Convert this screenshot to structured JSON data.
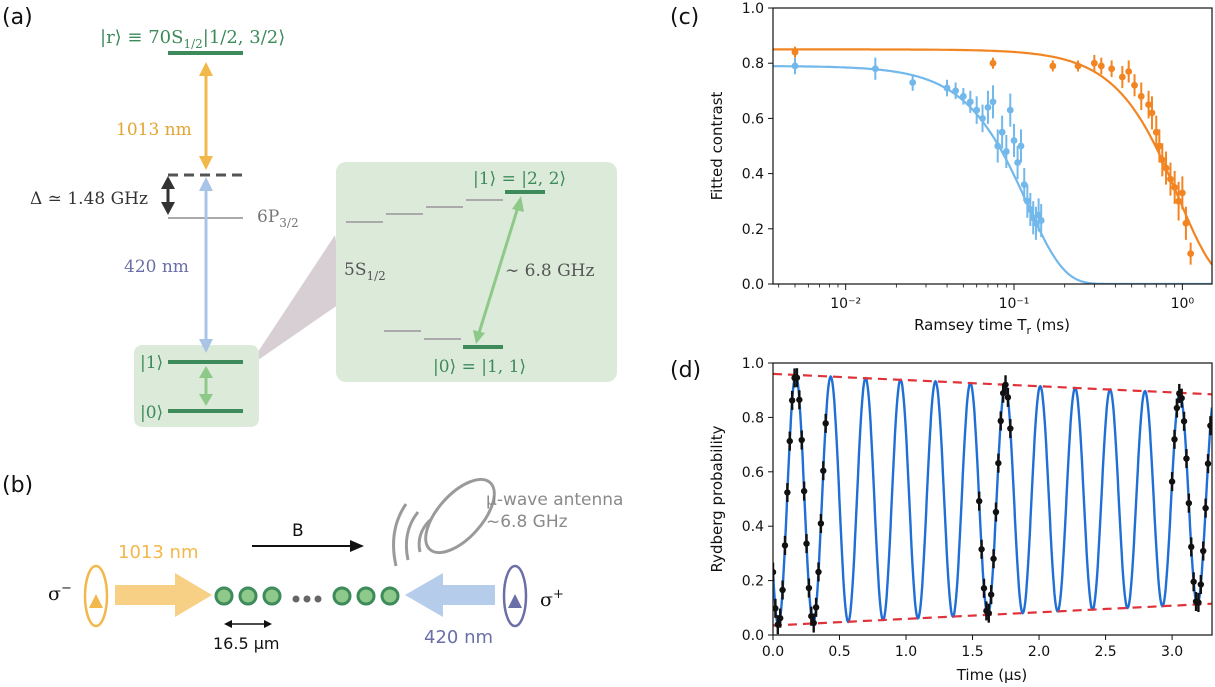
{
  "panel_labels": {
    "a": "(a)",
    "b": "(b)",
    "c": "(c)",
    "d": "(d)"
  },
  "colors": {
    "green": "#3d8a5a",
    "green_box": "#dcebd9",
    "yellow": "#f2b84b",
    "blue_light": "#a9c4e6",
    "purple": "#6b6fa8",
    "gray": "#8a8a8a",
    "orange": "#f28522",
    "sky": "#72b8ea",
    "fit_blue": "#1f6fd6",
    "red": "#e0323a"
  },
  "panel_a": {
    "rydberg_label_prefix": "|r⟩ ≡ 70S",
    "rydberg_label_sub": "1/2",
    "rydberg_label_suffix": "|1/2, 3/2⟩",
    "label_1013": "1013 nm",
    "label_420": "420 nm",
    "detuning_prefix": "Δ ≃ ",
    "detuning_value": "1.48 GHz",
    "p_state": "6P",
    "p_state_sub": "3/2",
    "s_state": "5S",
    "s_state_sub": "1/2",
    "ket1": "|1⟩",
    "ket0": "|0⟩",
    "ket1_full": "|1⟩ = |2, 2⟩",
    "ket0_full": "|0⟩ = |1, 1⟩",
    "hyperfine": "∼ 6.8 GHz"
  },
  "panel_b": {
    "field_label": "B",
    "antenna_line1": "μ-wave antenna",
    "antenna_line2": "~6.8 GHz",
    "label_1013": "1013 nm",
    "label_420": "420 nm",
    "spacing": "16.5 μm",
    "sigma_minus": "σ",
    "sigma_minus_sup": "−",
    "sigma_plus": "σ",
    "sigma_plus_sup": "+"
  },
  "chart_data": [
    {
      "id": "c",
      "type": "scatter",
      "title": "",
      "xlabel_main": "Ramsey time T",
      "xlabel_sub": "r",
      "xlabel_unit": " (ms)",
      "ylabel": "Fitted contrast",
      "xscale": "log",
      "xlim": [
        0.0037,
        1.5
      ],
      "ylim": [
        0,
        1
      ],
      "yticks": [
        0.0,
        0.2,
        0.4,
        0.6,
        0.8,
        1.0
      ],
      "ytick_labels": [
        "0.0",
        "0.2",
        "0.4",
        "0.6",
        "0.8",
        "1.0"
      ],
      "xticks": [
        0.01,
        0.1,
        1
      ],
      "xtick_labels": [
        "10⁻²",
        "10⁻¹",
        "10⁰"
      ],
      "series": [
        {
          "color": "orange",
          "fit": {
            "amp": 0.85,
            "tau": 0.95,
            "power": 2
          },
          "points": [
            [
              0.005,
              0.84,
              0.02
            ],
            [
              0.075,
              0.8,
              0.02
            ],
            [
              0.17,
              0.79,
              0.02
            ],
            [
              0.24,
              0.79,
              0.02
            ],
            [
              0.3,
              0.8,
              0.03
            ],
            [
              0.33,
              0.79,
              0.03
            ],
            [
              0.38,
              0.78,
              0.03
            ],
            [
              0.44,
              0.75,
              0.04
            ],
            [
              0.48,
              0.77,
              0.04
            ],
            [
              0.52,
              0.72,
              0.04
            ],
            [
              0.57,
              0.68,
              0.05
            ],
            [
              0.63,
              0.65,
              0.05
            ],
            [
              0.66,
              0.62,
              0.06
            ],
            [
              0.7,
              0.55,
              0.06
            ],
            [
              0.73,
              0.5,
              0.06
            ],
            [
              0.76,
              0.45,
              0.06
            ],
            [
              0.8,
              0.42,
              0.06
            ],
            [
              0.85,
              0.38,
              0.06
            ],
            [
              0.9,
              0.35,
              0.06
            ],
            [
              0.95,
              0.3,
              0.07
            ],
            [
              1.0,
              0.33,
              0.06
            ],
            [
              1.05,
              0.22,
              0.06
            ],
            [
              1.12,
              0.11,
              0.04
            ]
          ]
        },
        {
          "color": "sky",
          "fit": {
            "amp": 0.79,
            "tau": 0.12,
            "power": 2
          },
          "points": [
            [
              0.005,
              0.79,
              0.03
            ],
            [
              0.015,
              0.78,
              0.04
            ],
            [
              0.025,
              0.73,
              0.03
            ],
            [
              0.04,
              0.71,
              0.03
            ],
            [
              0.045,
              0.7,
              0.03
            ],
            [
              0.05,
              0.68,
              0.03
            ],
            [
              0.055,
              0.66,
              0.04
            ],
            [
              0.06,
              0.63,
              0.05
            ],
            [
              0.065,
              0.6,
              0.05
            ],
            [
              0.07,
              0.64,
              0.06
            ],
            [
              0.075,
              0.66,
              0.06
            ],
            [
              0.08,
              0.5,
              0.06
            ],
            [
              0.085,
              0.55,
              0.06
            ],
            [
              0.09,
              0.48,
              0.06
            ],
            [
              0.095,
              0.63,
              0.06
            ],
            [
              0.1,
              0.52,
              0.06
            ],
            [
              0.105,
              0.44,
              0.06
            ],
            [
              0.11,
              0.5,
              0.06
            ],
            [
              0.115,
              0.36,
              0.06
            ],
            [
              0.12,
              0.3,
              0.06
            ],
            [
              0.125,
              0.27,
              0.06
            ],
            [
              0.13,
              0.24,
              0.06
            ],
            [
              0.135,
              0.22,
              0.06
            ],
            [
              0.14,
              0.25,
              0.06
            ],
            [
              0.145,
              0.23,
              0.06
            ]
          ]
        }
      ]
    },
    {
      "id": "d",
      "type": "line",
      "title": "",
      "xlabel": "Time (μs)",
      "ylabel": "Rydberg probability",
      "xlim": [
        0,
        3.3
      ],
      "ylim": [
        0,
        1
      ],
      "xticks": [
        0.0,
        0.5,
        1.0,
        1.5,
        2.0,
        2.5,
        3.0
      ],
      "xtick_labels": [
        "0.0",
        "0.5",
        "1.0",
        "1.5",
        "2.0",
        "2.5",
        "3.0"
      ],
      "yticks": [
        0.0,
        0.2,
        0.4,
        0.6,
        0.8,
        1.0
      ],
      "ytick_labels": [
        "0.0",
        "0.2",
        "0.4",
        "0.6",
        "0.8",
        "1.0"
      ],
      "fit": {
        "period": 0.2625,
        "phase0": 0.04,
        "upper": [
          0.96,
          0.885
        ],
        "lower": [
          0.035,
          0.115
        ]
      },
      "point_windows": [
        [
          0.0,
          0.4
        ],
        [
          1.55,
          1.8
        ],
        [
          3.0,
          3.3
        ]
      ],
      "point_step": 0.018
    }
  ]
}
